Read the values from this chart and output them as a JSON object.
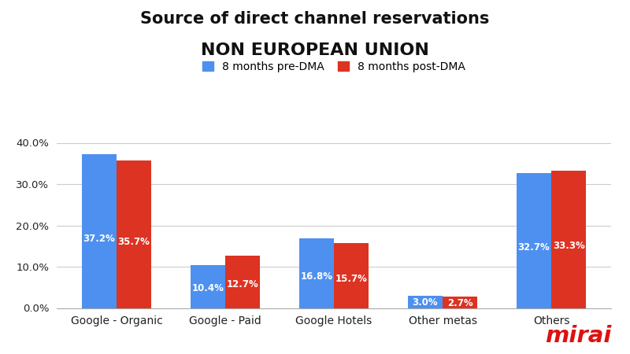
{
  "title_line1": "Source of direct channel reservations",
  "title_line2": "NON EUROPEAN UNION",
  "categories": [
    "Google - Organic",
    "Google - Paid",
    "Google Hotels",
    "Other metas",
    "Others"
  ],
  "pre_dma": [
    37.2,
    10.4,
    16.8,
    3.0,
    32.7
  ],
  "post_dma": [
    35.7,
    12.7,
    15.7,
    2.7,
    33.3
  ],
  "pre_color": "#4d90f0",
  "post_color": "#dd3322",
  "legend_pre": "8 months pre-DMA",
  "legend_post": "8 months post-DMA",
  "ylim": [
    0,
    42
  ],
  "yticks": [
    0,
    10,
    20,
    30,
    40
  ],
  "ytick_labels": [
    "0.0%",
    "10.0%",
    "20.0%",
    "30.0%",
    "40.0%"
  ],
  "bar_width": 0.32,
  "label_fontsize": 8.5,
  "title_fontsize_line1": 15,
  "title_fontsize_line2": 16,
  "background_color": "#ffffff",
  "grid_color": "#cccccc",
  "mirai_color": "#dd1111",
  "mirai_text": "mirai"
}
